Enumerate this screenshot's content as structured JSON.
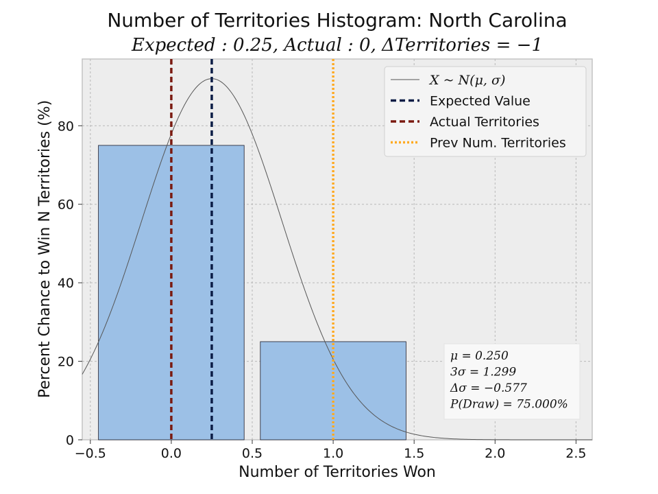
{
  "chart_data": {
    "type": "bar",
    "title": "Number of Territories Histogram: North Carolina",
    "subtitle": "Expected : 0.25, Actual : 0, ΔTerritories = −1",
    "xlabel": "Number of Territories Won",
    "ylabel": "Percent Chance to Win N Territories (%)",
    "xlim": [
      -0.55,
      2.6
    ],
    "ylim": [
      0,
      97
    ],
    "xticks": [
      -0.5,
      0.0,
      0.5,
      1.0,
      1.5,
      2.0,
      2.5
    ],
    "xtick_labels": [
      "−0.5",
      "0.0",
      "0.5",
      "1.0",
      "1.5",
      "2.0",
      "2.5"
    ],
    "yticks": [
      0,
      20,
      40,
      60,
      80
    ],
    "ytick_labels": [
      "0",
      "20",
      "40",
      "60",
      "80"
    ],
    "grid": true,
    "legend_position": "top-right",
    "bars": [
      {
        "x": 0,
        "value": 75
      },
      {
        "x": 1,
        "value": 25
      }
    ],
    "bar_width": 0.9,
    "normal_curve": {
      "name": "X ~ N(μ, σ)",
      "mu": 0.25,
      "sigma": 0.433,
      "peak": 92
    },
    "vlines": [
      {
        "name": "Expected Value",
        "x": 0.25,
        "style": "dashed",
        "color": "#0b1c45"
      },
      {
        "name": "Actual Territories",
        "x": 0,
        "style": "dashed",
        "color": "#7a1a10"
      },
      {
        "name": "Prev Num. Territories",
        "x": 1,
        "style": "dotted",
        "color": "#ffaa22"
      }
    ],
    "stats_box": [
      "μ = 0.250",
      "3σ = 1.299",
      "Δσ = −0.577",
      "P(Draw) = 75.000%"
    ],
    "colors": {
      "bar_fill": "#9cc0e6",
      "bar_edge": "#1a1a2a",
      "axes_bg": "#ededed",
      "grid": "#b8b8b8",
      "curve": "#555555"
    }
  }
}
